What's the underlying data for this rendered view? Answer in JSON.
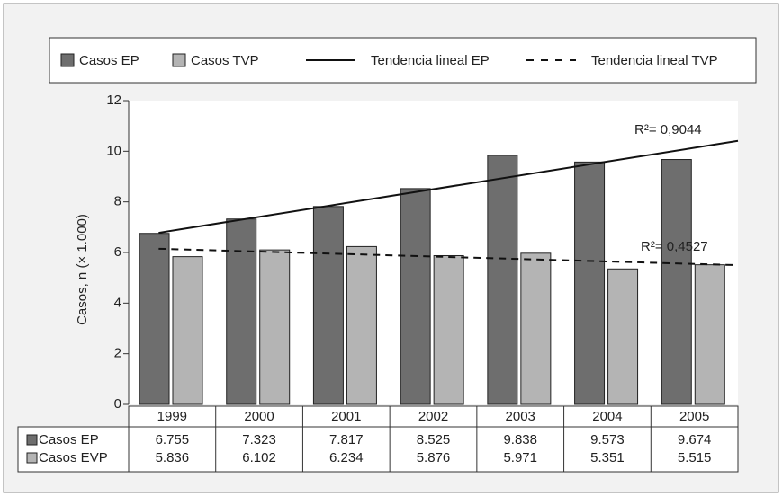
{
  "chart_data": {
    "type": "bar",
    "y_label": "Casos, n (× 1.000)",
    "categories": [
      "1999",
      "2000",
      "2001",
      "2002",
      "2003",
      "2004",
      "2005"
    ],
    "series": [
      {
        "name": "Casos EP",
        "color": "#6e6e6e",
        "values": [
          6.755,
          7.323,
          7.817,
          8.525,
          9.838,
          9.573,
          9.674
        ],
        "trend": {
          "name": "Tendencia lineal EP",
          "dash": false,
          "annotation": "R²= 0,9044"
        }
      },
      {
        "name": "Casos TVP",
        "color": "#b4b4b4",
        "values": [
          5.836,
          6.102,
          6.234,
          5.876,
          5.971,
          5.351,
          5.515
        ],
        "trend": {
          "name": "Tendencia lineal TVP",
          "dash": true,
          "annotation": "R²= 0,4527"
        }
      }
    ],
    "table": {
      "row_labels": [
        "Casos EP",
        "Casos EVP"
      ]
    },
    "ylim": [
      0,
      12
    ],
    "yticks": [
      0,
      2,
      4,
      6,
      8,
      10,
      12
    ],
    "grid": false,
    "legend": "top"
  }
}
